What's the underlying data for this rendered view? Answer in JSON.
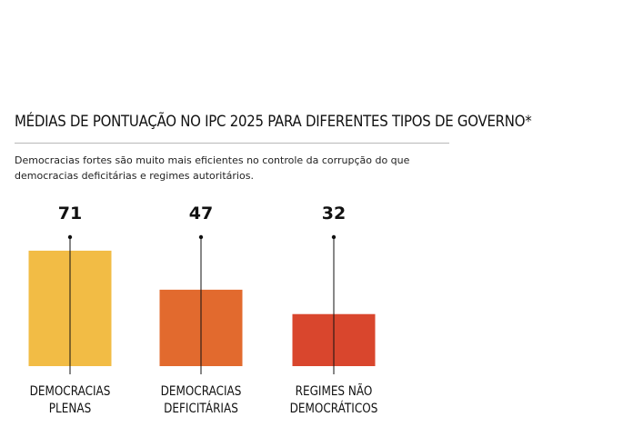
{
  "header": {
    "title": "MÉDIAS DE PONTUAÇÃO NO IPC 2025 PARA DIFERENTES TIPOS DE GOVERNO*",
    "subtitle": "Democracias fortes são muito mais eficientes no controle da corrupção do que democracias deficitárias e regimes autoritários."
  },
  "chart_data": {
    "type": "bar",
    "categories": [
      [
        "DEMOCRACIAS",
        "PLENAS"
      ],
      [
        "DEMOCRACIAS",
        "DEFICITÁRIAS"
      ],
      [
        "REGIMES NÃO",
        "DEMOCRÁTICOS"
      ]
    ],
    "values": [
      71,
      47,
      32
    ],
    "colors": [
      "#f2bc45",
      "#e26a2e",
      "#d9462d"
    ],
    "ylim": [
      0,
      100
    ],
    "grid": false,
    "legend": "none"
  }
}
